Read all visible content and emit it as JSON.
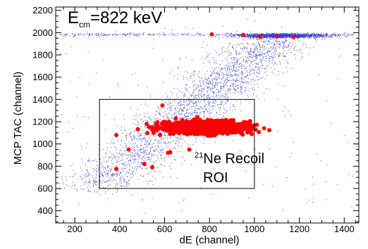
{
  "chart_data": {
    "type": "scatter",
    "title": "",
    "xlabel": "dE (channel)",
    "ylabel": "MCP TAC (channel)",
    "xlim": [
      115,
      1465
    ],
    "ylim": [
      290,
      2230
    ],
    "x_ticks": [
      200,
      400,
      600,
      800,
      1000,
      1200,
      1400
    ],
    "y_ticks": [
      400,
      600,
      800,
      1000,
      1200,
      1400,
      1600,
      1800,
      2000,
      2200
    ],
    "grid": false,
    "legend": "none",
    "annotation_energy": {
      "symbol": "E",
      "subscript": "cm",
      "text": "=822 keV"
    },
    "annotation_roi": {
      "superscript": "21",
      "line1": "Ne Recoil",
      "line2": "ROI"
    },
    "roi_box": {
      "x": [
        310,
        1000
      ],
      "y": [
        600,
        1400
      ]
    },
    "series": [
      {
        "name": "",
        "color": "#3a3ad6",
        "marker": "dot",
        "components": [
          {
            "shape": "band",
            "x_from": 290,
            "y_from": 600,
            "x_to": 1090,
            "y_to": 1950,
            "spread_x": 95,
            "count": 2600
          },
          {
            "shape": "blob",
            "cx": 1120,
            "cy": 1975,
            "sx": 100,
            "sy": 10,
            "count": 1500
          },
          {
            "shape": "line",
            "x_from": 130,
            "x_to": 1440,
            "y": 1985,
            "sy": 7,
            "count": 380
          },
          {
            "shape": "uniform",
            "x": [
              130,
              1440
            ],
            "y": [
              330,
              2180
            ],
            "count": 160
          }
        ]
      },
      {
        "name": "",
        "color": "#ff0000",
        "marker": "circle",
        "components": [
          {
            "shape": "blob",
            "cx": 780,
            "cy": 1150,
            "sx": 80,
            "sy": 25,
            "count": 1800
          }
        ],
        "points": [
          [
            385,
            1080
          ],
          [
            440,
            950
          ],
          [
            385,
            775
          ],
          [
            510,
            820
          ],
          [
            545,
            790
          ],
          [
            520,
            1180
          ],
          [
            545,
            1150
          ],
          [
            580,
            1080
          ],
          [
            590,
            1345
          ],
          [
            610,
            1120
          ],
          [
            650,
            1230
          ],
          [
            615,
            920
          ],
          [
            625,
            925
          ],
          [
            710,
            950
          ],
          [
            810,
            1985
          ],
          [
            950,
            1980
          ],
          [
            1025,
            1965
          ],
          [
            1100,
            1965
          ],
          [
            1175,
            1960
          ]
        ]
      }
    ]
  }
}
